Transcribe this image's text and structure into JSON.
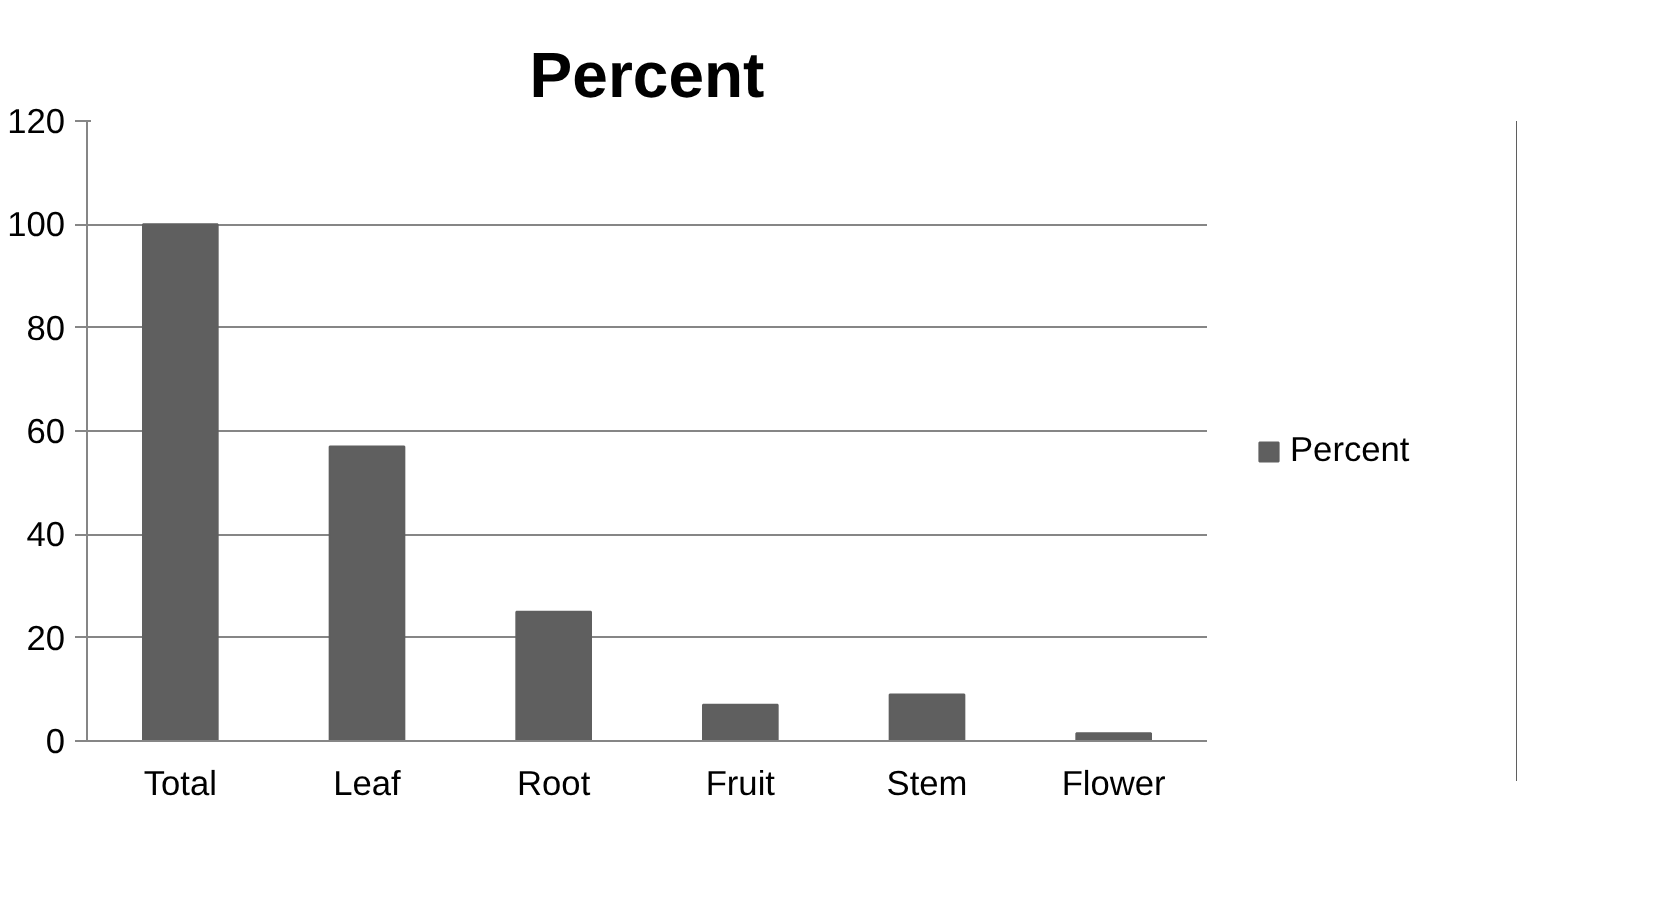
{
  "chart_data": {
    "type": "bar",
    "title": "Percent",
    "categories": [
      "Total",
      "Leaf",
      "Root",
      "Fruit",
      "Stem",
      "Flower"
    ],
    "series": [
      {
        "name": "Percent",
        "color": "#5f5f5f",
        "values": [
          100,
          57,
          25,
          7,
          9,
          1.5
        ]
      }
    ],
    "ylim": [
      0,
      120
    ],
    "yticks": [
      0,
      20,
      40,
      60,
      80,
      100,
      120
    ],
    "grid": "y",
    "legend": "right"
  }
}
